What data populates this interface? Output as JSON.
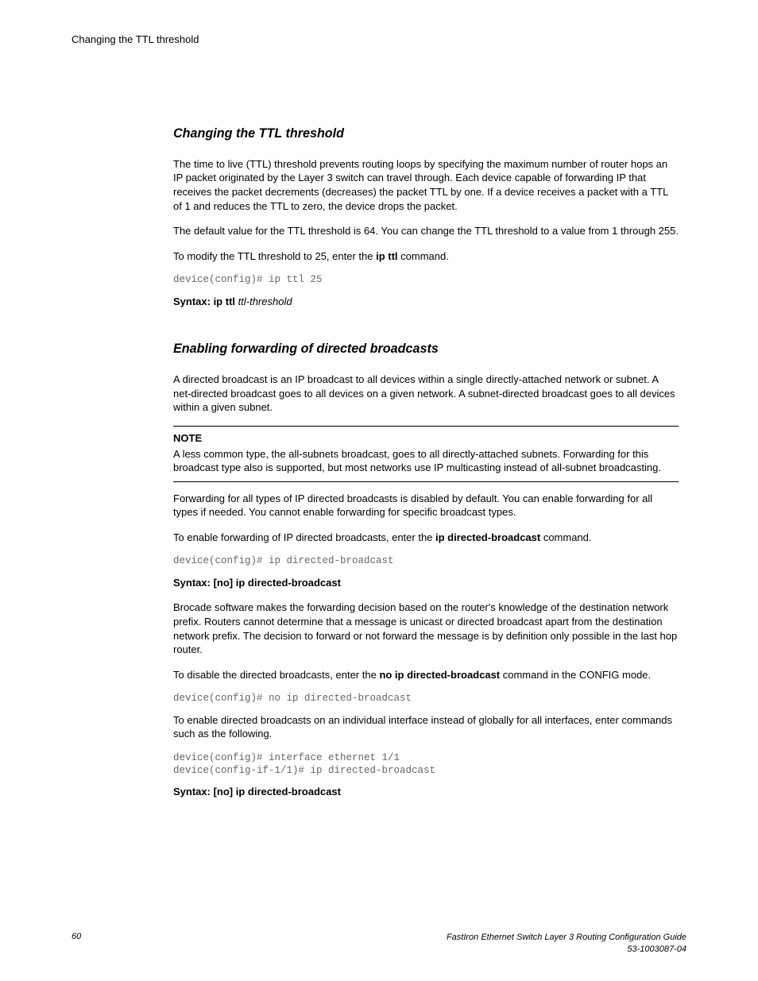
{
  "header": {
    "running_head": "Changing the TTL threshold"
  },
  "section1": {
    "heading": "Changing the TTL threshold",
    "p1": "The time to live (TTL) threshold prevents routing loops by specifying the maximum number of router hops an IP packet originated by the Layer 3 switch can travel through. Each device capable of forwarding IP that receives the packet decrements (decreases) the packet TTL by one. If a device receives a packet with a TTL of 1 and reduces the TTL to zero, the device drops the packet.",
    "p2": "The default value for the TTL threshold is 64. You can change the TTL threshold to a value from 1 through 255.",
    "p3_pre": "To modify the TTL threshold to 25, enter the ",
    "p3_cmd": "ip ttl",
    "p3_post": " command.",
    "code1": "device(config)# ip ttl 25",
    "syntax_label": "Syntax: ip ttl",
    "syntax_arg": "ttl-threshold"
  },
  "section2": {
    "heading": "Enabling forwarding of directed broadcasts",
    "p1": "A directed broadcast is an IP broadcast to all devices within a single directly-attached network or subnet. A net-directed broadcast goes to all devices on a given network. A subnet-directed broadcast goes to all devices within a given subnet.",
    "note_label": "NOTE",
    "note_body": "A less common type, the all-subnets broadcast, goes to all directly-attached subnets. Forwarding for this broadcast type also is supported, but most networks use IP multicasting instead of all-subnet broadcasting.",
    "p2": "Forwarding for all types of IP directed broadcasts is disabled by default. You can enable forwarding for all types if needed. You cannot enable forwarding for specific broadcast types.",
    "p3_pre": "To enable forwarding of IP directed broadcasts, enter the ",
    "p3_cmd": "ip directed-broadcast",
    "p3_post": " command.",
    "code1": "device(config)# ip directed-broadcast",
    "syntax1": "Syntax: [no] ip directed-broadcast",
    "p4": "Brocade software makes the forwarding decision based on the router's knowledge of the destination network prefix. Routers cannot determine that a message is unicast or directed broadcast apart from the destination network prefix. The decision to forward or not forward the message is by definition only possible in the last hop router.",
    "p5_pre": "To disable the directed broadcasts, enter the ",
    "p5_cmd": "no ip directed-broadcast",
    "p5_post": " command in the CONFIG mode.",
    "code2": "device(config)# no ip directed-broadcast",
    "p6": "To enable directed broadcasts on an individual interface instead of globally for all interfaces, enter commands such as the following.",
    "code3": "device(config)# interface ethernet 1/1\ndevice(config-if-1/1)# ip directed-broadcast",
    "syntax2": "Syntax: [no] ip directed-broadcast"
  },
  "footer": {
    "page_number": "60",
    "title": "FastIron Ethernet Switch Layer 3 Routing Configuration Guide",
    "docnum": "53-1003087-04"
  },
  "colors": {
    "text": "#000000",
    "code": "#666666",
    "background": "#ffffff",
    "rule": "#000000"
  },
  "typography": {
    "body_fontsize_pt": 10,
    "heading_fontsize_pt": 13,
    "code_fontsize_pt": 9.5,
    "footer_fontsize_pt": 8.5,
    "body_family": "Arial",
    "code_family": "Courier New"
  }
}
